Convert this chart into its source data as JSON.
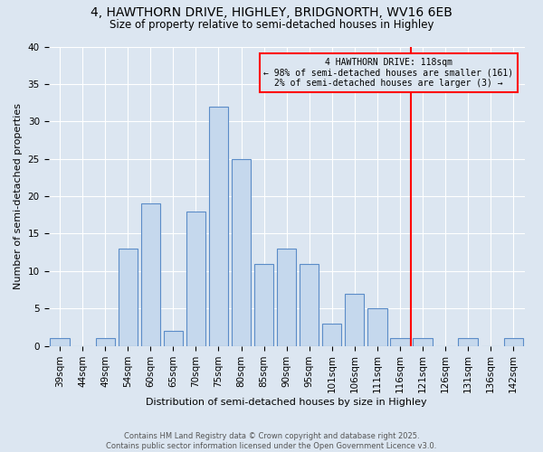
{
  "title": "4, HAWTHORN DRIVE, HIGHLEY, BRIDGNORTH, WV16 6EB",
  "subtitle": "Size of property relative to semi-detached houses in Highley",
  "xlabel": "Distribution of semi-detached houses by size in Highley",
  "ylabel": "Number of semi-detached properties",
  "bar_labels": [
    "39sqm",
    "44sqm",
    "49sqm",
    "54sqm",
    "60sqm",
    "65sqm",
    "70sqm",
    "75sqm",
    "80sqm",
    "85sqm",
    "90sqm",
    "95sqm",
    "101sqm",
    "106sqm",
    "111sqm",
    "116sqm",
    "121sqm",
    "126sqm",
    "131sqm",
    "136sqm",
    "142sqm"
  ],
  "bar_values": [
    1,
    0,
    1,
    13,
    19,
    2,
    18,
    32,
    25,
    11,
    13,
    11,
    3,
    7,
    5,
    1,
    1,
    0,
    1,
    0,
    1
  ],
  "bar_color": "#c5d8ed",
  "bar_edge_color": "#5b8cc8",
  "background_color": "#dce6f1",
  "grid_color": "#ffffff",
  "vline_x_index": 15.5,
  "vline_color": "red",
  "annotation_line1": "4 HAWTHORN DRIVE: 118sqm",
  "annotation_line2": "← 98% of semi-detached houses are smaller (161)",
  "annotation_line3": "2% of semi-detached houses are larger (3) →",
  "annotation_box_color": "red",
  "ylim": [
    0,
    40
  ],
  "yticks": [
    0,
    5,
    10,
    15,
    20,
    25,
    30,
    35,
    40
  ],
  "footer_line1": "Contains HM Land Registry data © Crown copyright and database right 2025.",
  "footer_line2": "Contains public sector information licensed under the Open Government Licence v3.0.",
  "title_fontsize": 10,
  "subtitle_fontsize": 8.5,
  "axis_fontsize": 8,
  "tick_fontsize": 7.5,
  "annotation_fontsize": 7,
  "footer_fontsize": 6
}
